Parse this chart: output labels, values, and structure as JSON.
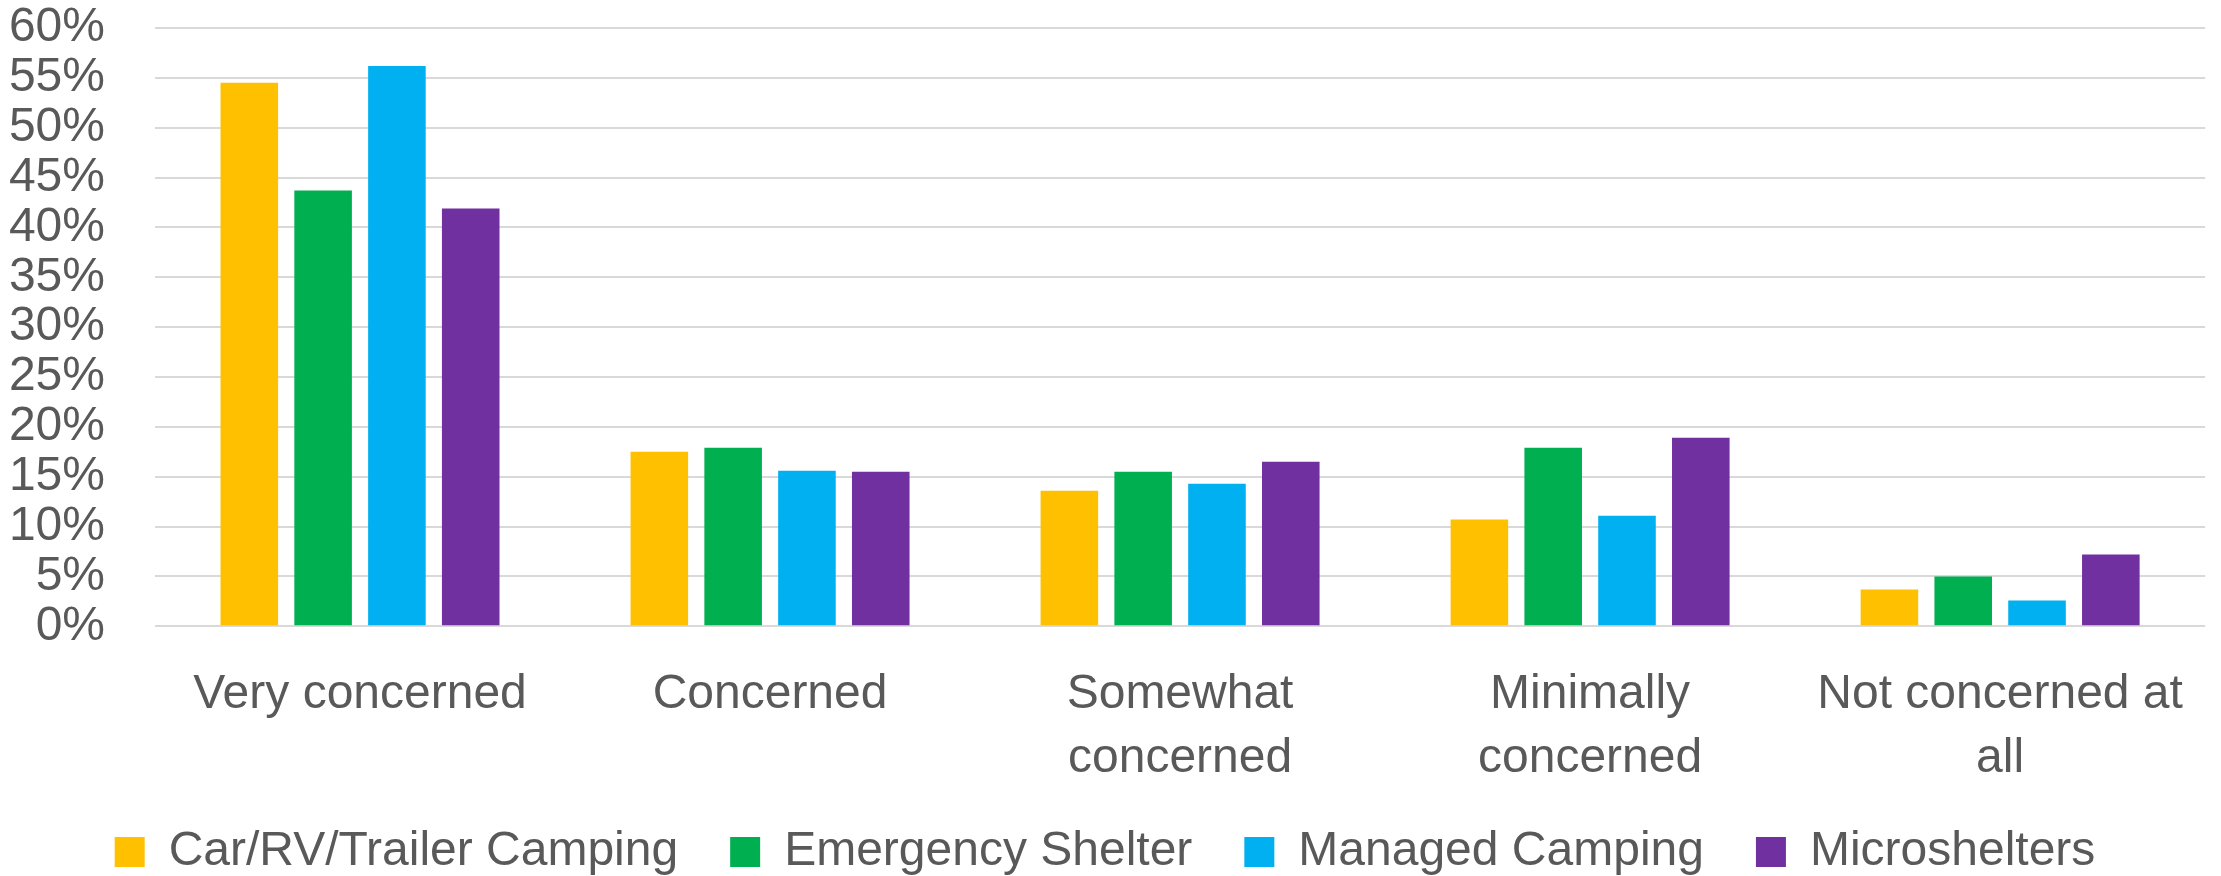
{
  "chart_data": {
    "type": "bar",
    "categories": [
      "Very concerned",
      "Concerned",
      "Somewhat concerned",
      "Minimally concerned",
      "Not concerned at all"
    ],
    "series": [
      {
        "name": "Car/RV/Trailer Camping",
        "color": "#ffc000",
        "values": [
          54.5,
          17.5,
          13.6,
          10.7,
          3.7
        ]
      },
      {
        "name": "Emergency Shelter",
        "color": "#00b050",
        "values": [
          43.7,
          17.9,
          15.5,
          17.9,
          5.0
        ]
      },
      {
        "name": "Managed Camping",
        "color": "#00b0f0",
        "values": [
          56.2,
          15.6,
          14.3,
          11.1,
          2.6
        ]
      },
      {
        "name": "Microshelters",
        "color": "#7030a0",
        "values": [
          41.9,
          15.5,
          16.5,
          18.9,
          7.2
        ]
      }
    ],
    "ylim": [
      0,
      60
    ],
    "yticks": [
      {
        "value": 0,
        "label": "0%"
      },
      {
        "value": 5,
        "label": "5%"
      },
      {
        "value": 10,
        "label": "10%"
      },
      {
        "value": 15,
        "label": "15%"
      },
      {
        "value": 20,
        "label": "20%"
      },
      {
        "value": 25,
        "label": "25%"
      },
      {
        "value": 30,
        "label": "30%"
      },
      {
        "value": 35,
        "label": "35%"
      },
      {
        "value": 40,
        "label": "40%"
      },
      {
        "value": 45,
        "label": "45%"
      },
      {
        "value": 50,
        "label": "50%"
      },
      {
        "value": 55,
        "label": "55%"
      },
      {
        "value": 60,
        "label": "60%"
      }
    ],
    "grid": "y",
    "legend": "bottom"
  }
}
